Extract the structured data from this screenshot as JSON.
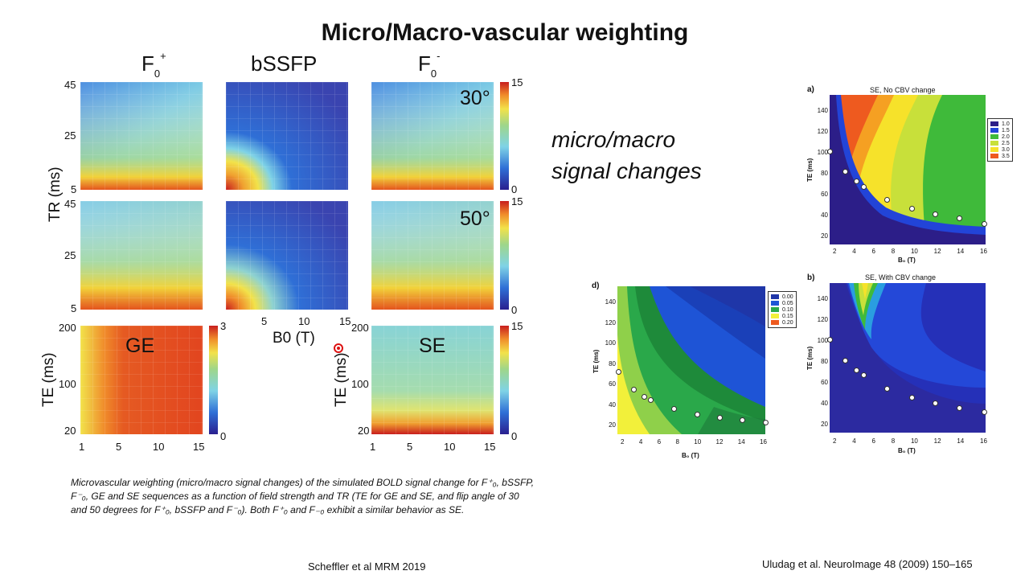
{
  "title": "Micro/Macro-vascular weighting",
  "columns": {
    "f0plus": {
      "base": "F",
      "sub": "0",
      "sup": "+"
    },
    "bssfp": "bSSFP",
    "f0minus": {
      "base": "F",
      "sub": "0",
      "sup": "-"
    }
  },
  "angles": {
    "top": "30°",
    "mid": "50°"
  },
  "axis": {
    "tr_label": "TR (ms)",
    "te_label_left": "TE (ms)",
    "te_label_right": "TE (ms)",
    "b0_label": "B0 (T)",
    "tr_ticks_top": [
      "45",
      "25",
      "5"
    ],
    "tr_ticks_mid": [
      "45",
      "25",
      "5"
    ],
    "te_ticks_left": [
      "200",
      "100",
      "20"
    ],
    "te_ticks_right": [
      "200",
      "100",
      "20"
    ],
    "b0_ticks_mid": [
      "5",
      "10",
      "15"
    ],
    "b0_ticks_bottom_left": [
      "1",
      "5",
      "10",
      "15"
    ],
    "b0_ticks_bottom_right": [
      "1",
      "5",
      "10",
      "15"
    ]
  },
  "panel_labels": {
    "ge": "GE",
    "se": "SE"
  },
  "colorbars": {
    "top": {
      "max": "15",
      "min": "0"
    },
    "mid": {
      "max": "15",
      "min": "0"
    },
    "ge": {
      "max": "3",
      "min": "0"
    },
    "se": {
      "max": "15",
      "min": "0"
    }
  },
  "side_text": {
    "line1": "micro/macro",
    "line2": "signal changes"
  },
  "caption": "Microvascular weighting (micro/macro signal changes) of the simulated BOLD signal change for F⁺₀, bSSFP, F⁻₀, GE and SE sequences as a function of field strength and TR (TE for GE and SE, and flip angle of 30 and 50 degrees for F⁺₀, bSSFP and F⁻₀). Both F⁺₀ and F₋₀ exhibit a similar behavior as SE.",
  "citation_left": "Scheffler et al MRM 2019",
  "citation_right": "Uludag et al. NeuroImage 48 (2009) 150–165",
  "right_plots": {
    "a": {
      "letter": "a)",
      "title": "SE, No CBV change",
      "xlabel": "B₀ (T)",
      "ylabel": "TE (ms)",
      "yticks": [
        "140",
        "120",
        "100",
        "80",
        "60",
        "40",
        "20"
      ],
      "xticks": [
        "2",
        "4",
        "6",
        "8",
        "10",
        "12",
        "14",
        "16"
      ],
      "legend": [
        "1.0",
        "1.5",
        "2.0",
        "2.5",
        "3.0",
        "3.5"
      ]
    },
    "b": {
      "letter": "b)",
      "title": "SE, With CBV change",
      "xlabel": "B₀ (T)",
      "ylabel": "TE (ms)",
      "yticks": [
        "140",
        "120",
        "100",
        "80",
        "60",
        "40",
        "20"
      ],
      "xticks": [
        "2",
        "4",
        "6",
        "8",
        "10",
        "12",
        "14",
        "16"
      ]
    },
    "d": {
      "letter": "d)",
      "xlabel": "B₀ (T)",
      "ylabel": "TE (ms)",
      "yticks": [
        "140",
        "120",
        "100",
        "80",
        "60",
        "40",
        "20"
      ],
      "xticks": [
        "2",
        "4",
        "6",
        "8",
        "10",
        "12",
        "14",
        "16"
      ],
      "legend": [
        "0.00",
        "0.05",
        "0.10",
        "0.15",
        "0.20"
      ]
    }
  },
  "colors": {
    "jet_low": "#2a1f8f",
    "jet_blue": "#2f6fd6",
    "jet_cyan": "#7fd3e6",
    "jet_green": "#9fd68a",
    "jet_yellow": "#f2e24a",
    "jet_orange": "#f08a2a",
    "jet_red": "#c81e1e"
  }
}
